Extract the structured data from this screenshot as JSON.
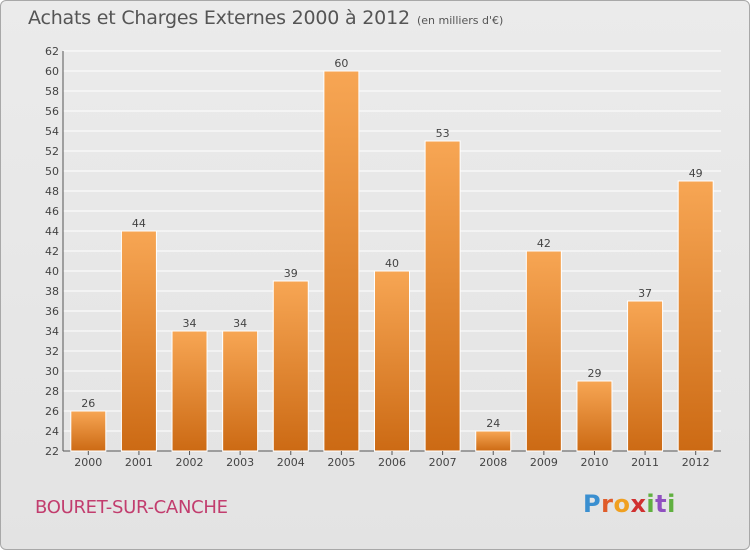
{
  "title": "Achats et Charges Externes 2000 à 2012",
  "subtitle": "(en milliers d'€)",
  "place": "BOURET-SUR-CANCHE",
  "logo": {
    "p": "P",
    "r": "r",
    "o": "o",
    "x": "x",
    "i": "i",
    "t": "t",
    "i2": "i"
  },
  "colors": {
    "bar_top": "#f7a654",
    "bar_bottom": "#cc6a14",
    "grid": "#ffffff",
    "text": "#555555",
    "place": "#c23d6e"
  },
  "chart_data": {
    "type": "bar",
    "categories": [
      "2000",
      "2001",
      "2002",
      "2003",
      "2004",
      "2005",
      "2006",
      "2007",
      "2008",
      "2009",
      "2010",
      "2011",
      "2012"
    ],
    "values": [
      26,
      44,
      34,
      34,
      39,
      60,
      40,
      53,
      24,
      42,
      29,
      37,
      49
    ],
    "ylim": [
      22,
      62
    ],
    "yticks": [
      22,
      24,
      26,
      28,
      30,
      32,
      34,
      36,
      38,
      40,
      42,
      44,
      46,
      48,
      50,
      52,
      54,
      56,
      58,
      60,
      62
    ],
    "grid": true,
    "data_labels": true
  }
}
